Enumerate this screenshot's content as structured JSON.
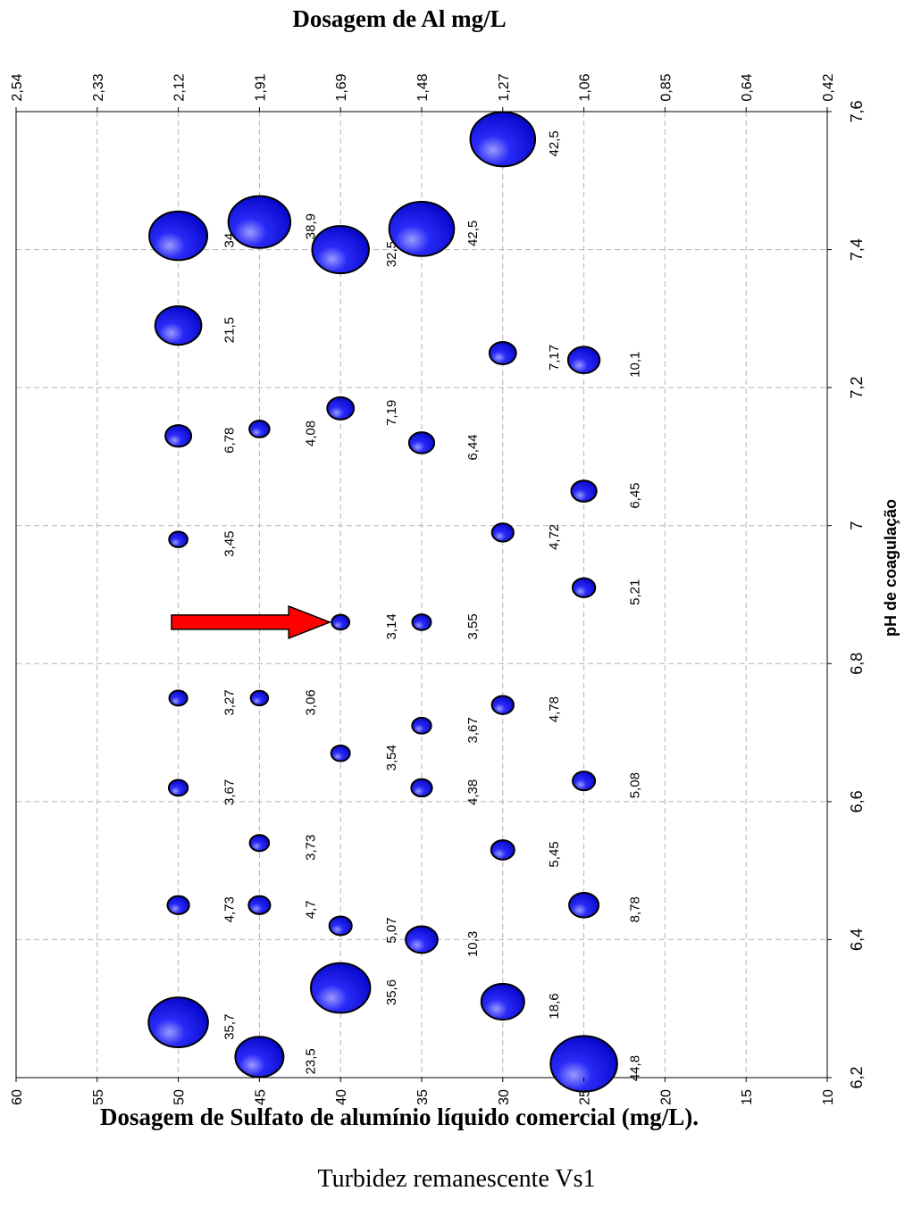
{
  "chart_data": {
    "type": "scatter",
    "title": "",
    "top_axis_label": "Dosagem de Al mg/L",
    "x_label": "Dosagem de Sulfato de alumínio líquido comercial (mg/L).",
    "y_label": "pH de coagulação",
    "caption": "Turbidez remanescente Vs1",
    "x_range": [
      60,
      10
    ],
    "y_range": [
      6.2,
      7.6
    ],
    "x_ticks": [
      "60",
      "55",
      "50",
      "45",
      "40",
      "35",
      "30",
      "25",
      "20",
      "15",
      "10"
    ],
    "y_ticks": [
      "6,2",
      "6,4",
      "6,6",
      "6,8",
      "7",
      "7,2",
      "7,4",
      "7,6"
    ],
    "top_ticks": [
      "2,54",
      "2,33",
      "2,12",
      "1,91",
      "1,69",
      "1,48",
      "1,27",
      "1,06",
      "0,85",
      "0,64",
      "0,42"
    ],
    "grid": true,
    "marker_color": "#1010ee",
    "arrow_color": "#ff0000",
    "arrow_target": {
      "x": 40,
      "y": 6.86
    },
    "points": [
      {
        "x": 50,
        "y": 6.28,
        "v": 35.7,
        "label": "35,7"
      },
      {
        "x": 50,
        "y": 6.45,
        "v": 4.73,
        "label": "4,73"
      },
      {
        "x": 50,
        "y": 6.62,
        "v": 3.67,
        "label": "3,67"
      },
      {
        "x": 50,
        "y": 6.75,
        "v": 3.27,
        "label": "3,27"
      },
      {
        "x": 50,
        "y": 6.98,
        "v": 3.45,
        "label": "3,45"
      },
      {
        "x": 50,
        "y": 7.13,
        "v": 6.78,
        "label": "6,78"
      },
      {
        "x": 50,
        "y": 7.29,
        "v": 21.5,
        "label": "21,5"
      },
      {
        "x": 50,
        "y": 7.42,
        "v": 34,
        "label": "34"
      },
      {
        "x": 45,
        "y": 6.23,
        "v": 23.5,
        "label": "23,5"
      },
      {
        "x": 45,
        "y": 6.45,
        "v": 4.7,
        "label": "4,7"
      },
      {
        "x": 45,
        "y": 6.54,
        "v": 3.73,
        "label": "3,73"
      },
      {
        "x": 45,
        "y": 6.75,
        "v": 3.06,
        "label": "3,06"
      },
      {
        "x": 45,
        "y": 7.14,
        "v": 4.08,
        "label": "4,08"
      },
      {
        "x": 45,
        "y": 7.44,
        "v": 38.9,
        "label": "38,9"
      },
      {
        "x": 40,
        "y": 6.33,
        "v": 35.6,
        "label": "35,6"
      },
      {
        "x": 40,
        "y": 6.42,
        "v": 5.07,
        "label": "5,07"
      },
      {
        "x": 40,
        "y": 6.67,
        "v": 3.54,
        "label": "3,54"
      },
      {
        "x": 40,
        "y": 6.86,
        "v": 3.14,
        "label": "3,14"
      },
      {
        "x": 40,
        "y": 7.17,
        "v": 7.19,
        "label": "7,19"
      },
      {
        "x": 40,
        "y": 7.4,
        "v": 32.5,
        "label": "32,5"
      },
      {
        "x": 35,
        "y": 6.4,
        "v": 10.3,
        "label": "10,3"
      },
      {
        "x": 35,
        "y": 6.62,
        "v": 4.38,
        "label": "4,38"
      },
      {
        "x": 35,
        "y": 6.71,
        "v": 3.67,
        "label": "3,67"
      },
      {
        "x": 35,
        "y": 6.86,
        "v": 3.55,
        "label": "3,55"
      },
      {
        "x": 35,
        "y": 7.12,
        "v": 6.44,
        "label": "6,44"
      },
      {
        "x": 35,
        "y": 7.43,
        "v": 42.5,
        "label": "42,5"
      },
      {
        "x": 30,
        "y": 6.31,
        "v": 18.6,
        "label": "18,6"
      },
      {
        "x": 30,
        "y": 6.53,
        "v": 5.45,
        "label": "5,45"
      },
      {
        "x": 30,
        "y": 6.74,
        "v": 4.78,
        "label": "4,78"
      },
      {
        "x": 30,
        "y": 6.99,
        "v": 4.72,
        "label": "4,72"
      },
      {
        "x": 30,
        "y": 7.25,
        "v": 7.17,
        "label": "7,17"
      },
      {
        "x": 30,
        "y": 7.56,
        "v": 42.5,
        "label": "42,5"
      },
      {
        "x": 25,
        "y": 6.22,
        "v": 44.8,
        "label": "44,8"
      },
      {
        "x": 25,
        "y": 6.45,
        "v": 8.78,
        "label": "8,78"
      },
      {
        "x": 25,
        "y": 6.63,
        "v": 5.08,
        "label": "5,08"
      },
      {
        "x": 25,
        "y": 6.91,
        "v": 5.21,
        "label": "5,21"
      },
      {
        "x": 25,
        "y": 7.05,
        "v": 6.45,
        "label": "6,45"
      },
      {
        "x": 25,
        "y": 7.24,
        "v": 10.1,
        "label": "10,1"
      }
    ]
  }
}
